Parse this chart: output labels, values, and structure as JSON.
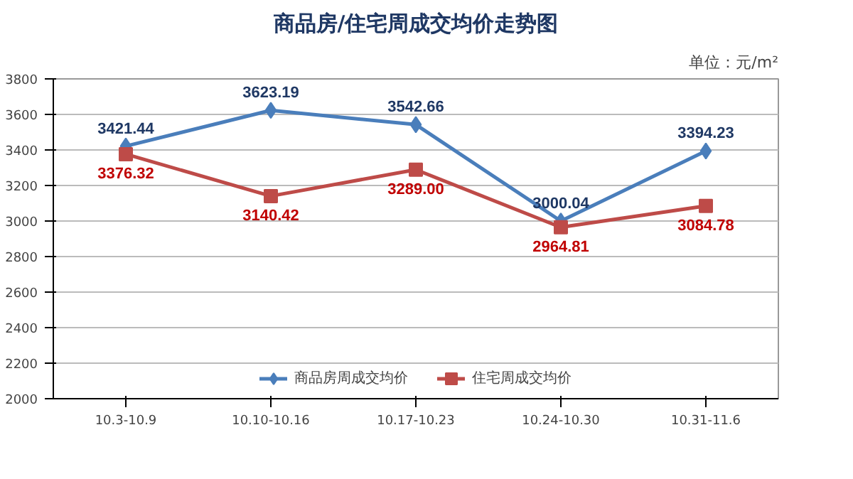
{
  "chart_data": {
    "type": "line",
    "title": "商品房/住宅周成交均价走势图",
    "annotations": [
      "单位：元/m²"
    ],
    "categories": [
      "10.3-10.9",
      "10.10-10.16",
      "10.17-10.23",
      "10.24-10.30",
      "10.31-11.6"
    ],
    "series": [
      {
        "name": "商品房周成交均价",
        "color": "#4a7ebb",
        "marker": "diamond",
        "values": [
          3421.44,
          3623.19,
          3542.66,
          3000.04,
          3394.23
        ],
        "value_labels": [
          "3421.44",
          "3623.19",
          "3542.66",
          "3000.04",
          "3394.23"
        ]
      },
      {
        "name": "住宅周成交均价",
        "color": "#be4b48",
        "marker": "square",
        "values": [
          3376.32,
          3140.42,
          3289.0,
          2964.81,
          3084.78
        ],
        "value_labels": [
          "3376.32",
          "3140.42",
          "3289.00",
          "2964.81",
          "3084.78"
        ]
      }
    ],
    "ylim": [
      2000,
      3800
    ],
    "yticks": [
      2000,
      2200,
      2400,
      2600,
      2800,
      3000,
      3200,
      3400,
      3600,
      3800
    ],
    "grid": "y",
    "legend": "bottom",
    "line_style": "solid"
  }
}
